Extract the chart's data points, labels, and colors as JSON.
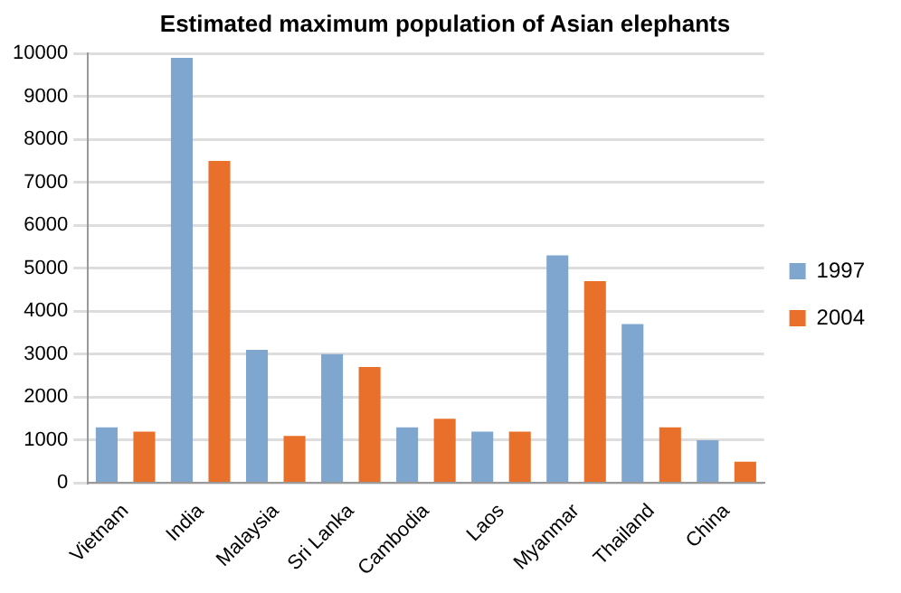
{
  "chart_data": {
    "type": "bar",
    "title": "Estimated maximum population of Asian elephants",
    "categories": [
      "Vietnam",
      "India",
      "Malaysia",
      "Sri Lanka",
      "Cambodia",
      "Laos",
      "Myanmar",
      "Thailand",
      "China"
    ],
    "series": [
      {
        "name": "1997",
        "color": "#7ea6cf",
        "values": [
          1300,
          9900,
          3100,
          3000,
          1300,
          1200,
          5300,
          3700,
          1000
        ]
      },
      {
        "name": "2004",
        "color": "#e8702a",
        "values": [
          1200,
          7500,
          1100,
          2700,
          1500,
          1200,
          4700,
          1300,
          500
        ]
      }
    ],
    "ylim": [
      0,
      10000
    ],
    "yticks": [
      0,
      1000,
      2000,
      3000,
      4000,
      5000,
      6000,
      7000,
      8000,
      9000,
      10000
    ],
    "grid": "y",
    "legend": "right"
  }
}
